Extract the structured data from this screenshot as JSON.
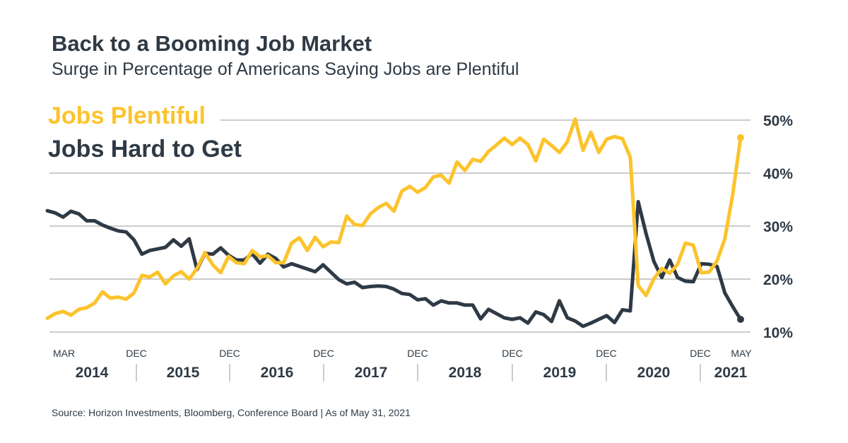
{
  "header": {
    "title": "Back to a Booming Job Market",
    "subtitle": "Surge in Percentage of Americans Saying Jobs are Plentiful"
  },
  "footer": {
    "source": "Source: Horizon Investments, Bloomberg, Conference Board | As of May 31, 2021"
  },
  "colors": {
    "plentiful": "#fcc32c",
    "hard": "#2e3a45",
    "grid": "#999999",
    "text": "#2e3a45"
  },
  "chart_data": {
    "type": "line",
    "title": "",
    "xlabel": "",
    "ylabel": "",
    "ylim": [
      10,
      50
    ],
    "yticks": [
      "50%",
      "40%",
      "30%",
      "20%",
      "10%"
    ],
    "legend_placement": "top-left",
    "grid": true,
    "month_labels": [
      "MAR",
      "DEC",
      "DEC",
      "DEC",
      "DEC",
      "DEC",
      "DEC",
      "DEC",
      "MAY"
    ],
    "year_labels": [
      "2014",
      "2015",
      "2016",
      "2017",
      "2018",
      "2019",
      "2020",
      "2021"
    ],
    "series": [
      {
        "name": "Jobs Plentiful",
        "color": "#fcc32c",
        "values": [
          12.6,
          13.5,
          13.9,
          13.2,
          14.3,
          14.6,
          15.5,
          17.6,
          16.4,
          16.6,
          16.2,
          17.4,
          20.7,
          20.4,
          21.3,
          19.1,
          20.6,
          21.4,
          20.0,
          22.0,
          25.0,
          22.7,
          21.2,
          24.3,
          23.1,
          22.9,
          25.4,
          24.2,
          24.4,
          23.1,
          23.1,
          26.8,
          27.8,
          25.4,
          27.9,
          26.1,
          27.0,
          26.9,
          31.9,
          30.3,
          30.1,
          32.3,
          33.5,
          34.3,
          32.8,
          36.6,
          37.5,
          36.4,
          37.3,
          39.3,
          39.6,
          38.1,
          42.1,
          40.5,
          42.6,
          42.2,
          44.1,
          45.3,
          46.6,
          45.4,
          46.6,
          45.4,
          42.3,
          46.4,
          45.2,
          43.9,
          45.9,
          50.2,
          44.3,
          47.7,
          43.9,
          46.4,
          46.9,
          46.5,
          43.0,
          18.8,
          16.9,
          20.1,
          22.0,
          21.1,
          22.8,
          26.8,
          26.4,
          21.2,
          21.3,
          23.4,
          27.6,
          36.0,
          46.7
        ]
      },
      {
        "name": "Jobs Hard to Get",
        "color": "#2e3a45",
        "values": [
          32.9,
          32.5,
          31.7,
          32.8,
          32.3,
          31.0,
          31.0,
          30.2,
          29.6,
          29.1,
          28.9,
          27.4,
          24.7,
          25.4,
          25.7,
          26.0,
          27.4,
          26.2,
          27.6,
          21.8,
          24.9,
          24.7,
          25.9,
          24.5,
          23.6,
          23.6,
          24.8,
          23.0,
          24.7,
          23.9,
          22.3,
          22.9,
          22.4,
          21.9,
          21.4,
          22.7,
          21.3,
          19.9,
          19.1,
          19.4,
          18.4,
          18.6,
          18.7,
          18.6,
          18.1,
          17.3,
          17.1,
          16.1,
          16.3,
          15.1,
          15.9,
          15.5,
          15.5,
          15.1,
          15.1,
          12.5,
          14.3,
          13.5,
          12.7,
          12.4,
          12.7,
          11.7,
          13.8,
          13.3,
          12.0,
          15.9,
          12.7,
          12.1,
          11.1,
          11.7,
          12.4,
          13.1,
          11.8,
          14.2,
          14.0,
          34.6,
          28.6,
          23.3,
          20.3,
          23.6,
          20.3,
          19.6,
          19.5,
          22.9,
          22.8,
          22.4,
          17.4,
          14.8,
          12.4
        ]
      }
    ]
  }
}
